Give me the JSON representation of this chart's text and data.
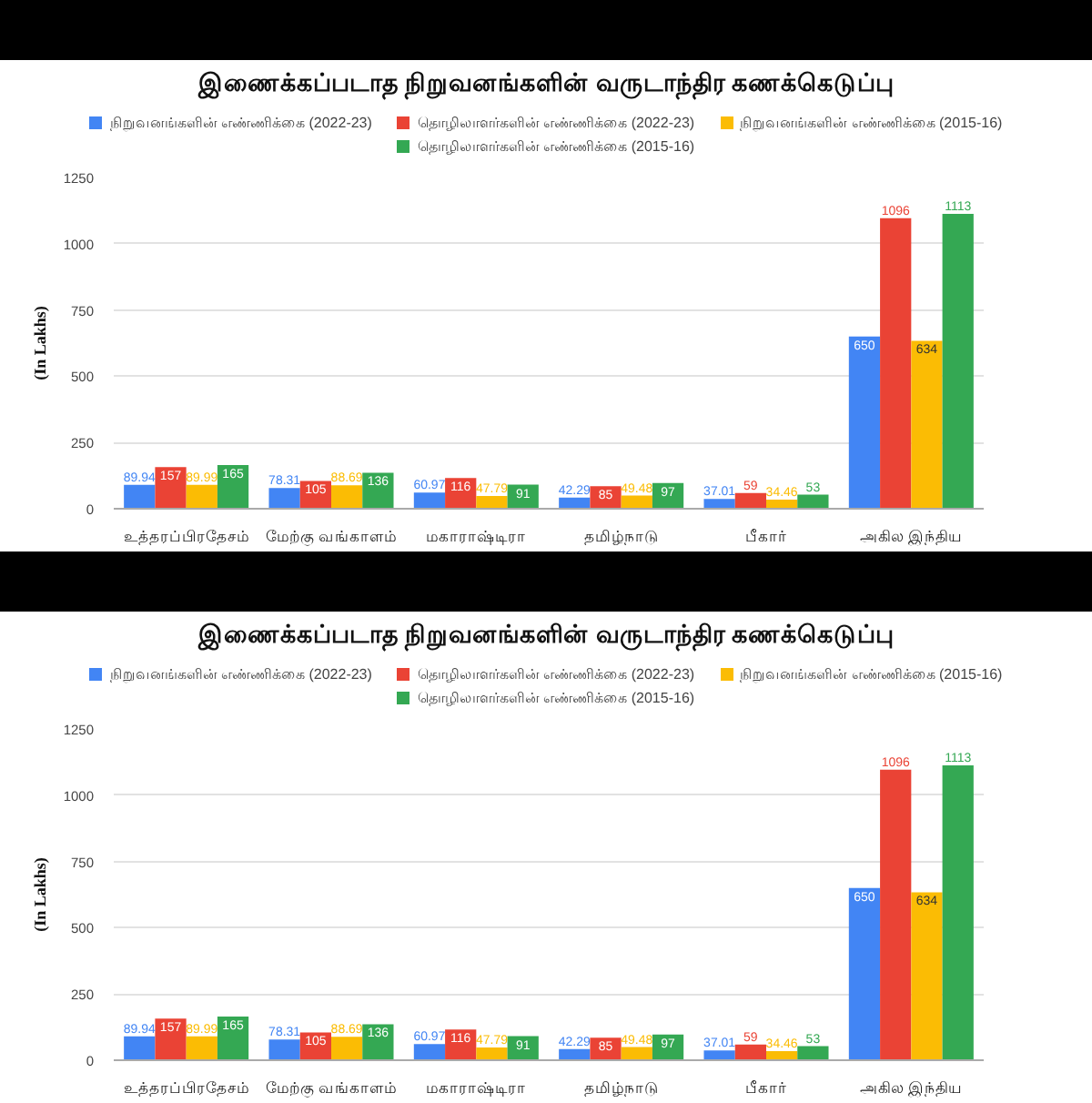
{
  "chart_data": [
    {
      "type": "bar",
      "title": "இணைக்கப்படாத நிறுவனங்களின் வருடாந்திர கணக்கெடுப்பு",
      "ylabel": "(In Lakhs)",
      "categories": [
        "உத்தரப்பிரதேசம்",
        "மேற்கு வங்காளம்",
        "மகாராஷ்டிரா",
        "தமிழ்நாடு",
        "பீகார்",
        "அகில இந்திய"
      ],
      "series": [
        {
          "name": "நிறுவனங்களின் எண்ணிக்கை (2022-23)",
          "color": "#4285f4",
          "values": [
            89.94,
            78.31,
            60.97,
            42.29,
            37.01,
            650
          ]
        },
        {
          "name": "தொழிலாளர்களின் எண்ணிக்கை (2022-23)",
          "color": "#ea4335",
          "values": [
            157,
            105,
            116,
            85,
            59,
            1096
          ]
        },
        {
          "name": "நிறுவனங்களின் எண்ணிக்கை (2015-16)",
          "color": "#fbbc04",
          "values": [
            89.99,
            88.69,
            47.79,
            49.48,
            34.46,
            634
          ]
        },
        {
          "name": "தொழிலாளர்களின் எண்ணிக்கை (2015-16)",
          "color": "#34a853",
          "values": [
            165,
            136,
            91,
            97,
            53,
            1113
          ]
        }
      ],
      "ylim": [
        0,
        1250
      ],
      "yticks": [
        0,
        250,
        500,
        750,
        1000,
        1250
      ],
      "grid": "y",
      "legend": "top",
      "data_labels": true
    },
    {
      "type": "bar",
      "title": "இணைக்கப்படாத நிறுவனங்களின் வருடாந்திர கணக்கெடுப்பு",
      "ylabel": "(In Lakhs)",
      "categories": [
        "உத்தரப்பிரதேசம்",
        "மேற்கு வங்காளம்",
        "மகாராஷ்டிரா",
        "தமிழ்நாடு",
        "பீகார்",
        "அகில இந்திய"
      ],
      "series": [
        {
          "name": "நிறுவனங்களின் எண்ணிக்கை (2022-23)",
          "color": "#4285f4",
          "values": [
            89.94,
            78.31,
            60.97,
            42.29,
            37.01,
            650
          ]
        },
        {
          "name": "தொழிலாளர்களின் எண்ணிக்கை (2022-23)",
          "color": "#ea4335",
          "values": [
            157,
            105,
            116,
            85,
            59,
            1096
          ]
        },
        {
          "name": "நிறுவனங்களின் எண்ணிக்கை (2015-16)",
          "color": "#fbbc04",
          "values": [
            89.99,
            88.69,
            47.79,
            49.48,
            34.46,
            634
          ]
        },
        {
          "name": "தொழிலாளர்களின் எண்ணிக்கை (2015-16)",
          "color": "#34a853",
          "values": [
            165,
            136,
            91,
            97,
            53,
            1113
          ]
        }
      ],
      "ylim": [
        0,
        1250
      ],
      "yticks": [
        0,
        250,
        500,
        750,
        1000,
        1250
      ],
      "grid": "y",
      "legend": "top",
      "data_labels": true
    }
  ]
}
